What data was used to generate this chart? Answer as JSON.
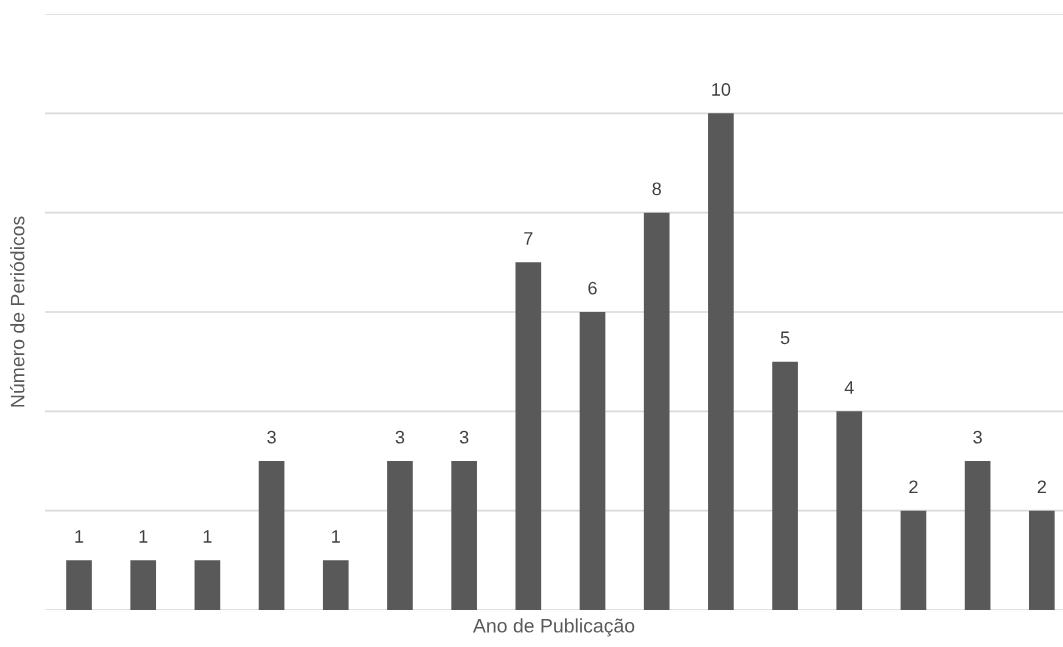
{
  "chart_data": {
    "type": "bar",
    "xlabel": "Ano de Publicação",
    "ylabel": "Número de Periódicos",
    "categories": [
      null,
      null,
      null,
      null,
      null,
      null,
      null,
      null,
      null,
      null,
      null,
      null,
      null,
      null,
      null,
      null
    ],
    "values": [
      1,
      1,
      1,
      3,
      1,
      3,
      3,
      7,
      6,
      8,
      10,
      5,
      4,
      2,
      3,
      2
    ],
    "color": "#595959",
    "data_labels": true,
    "grid": "y",
    "tick_labels": false,
    "ylim": [
      0,
      12
    ],
    "yticks": [
      {
        "value": 0,
        "label": null
      },
      {
        "value": 2,
        "label": null
      },
      {
        "value": 4,
        "label": null
      },
      {
        "value": 6,
        "label": null
      },
      {
        "value": 8,
        "label": null
      },
      {
        "value": 10,
        "label": null
      },
      {
        "value": 12,
        "label": null
      }
    ]
  }
}
